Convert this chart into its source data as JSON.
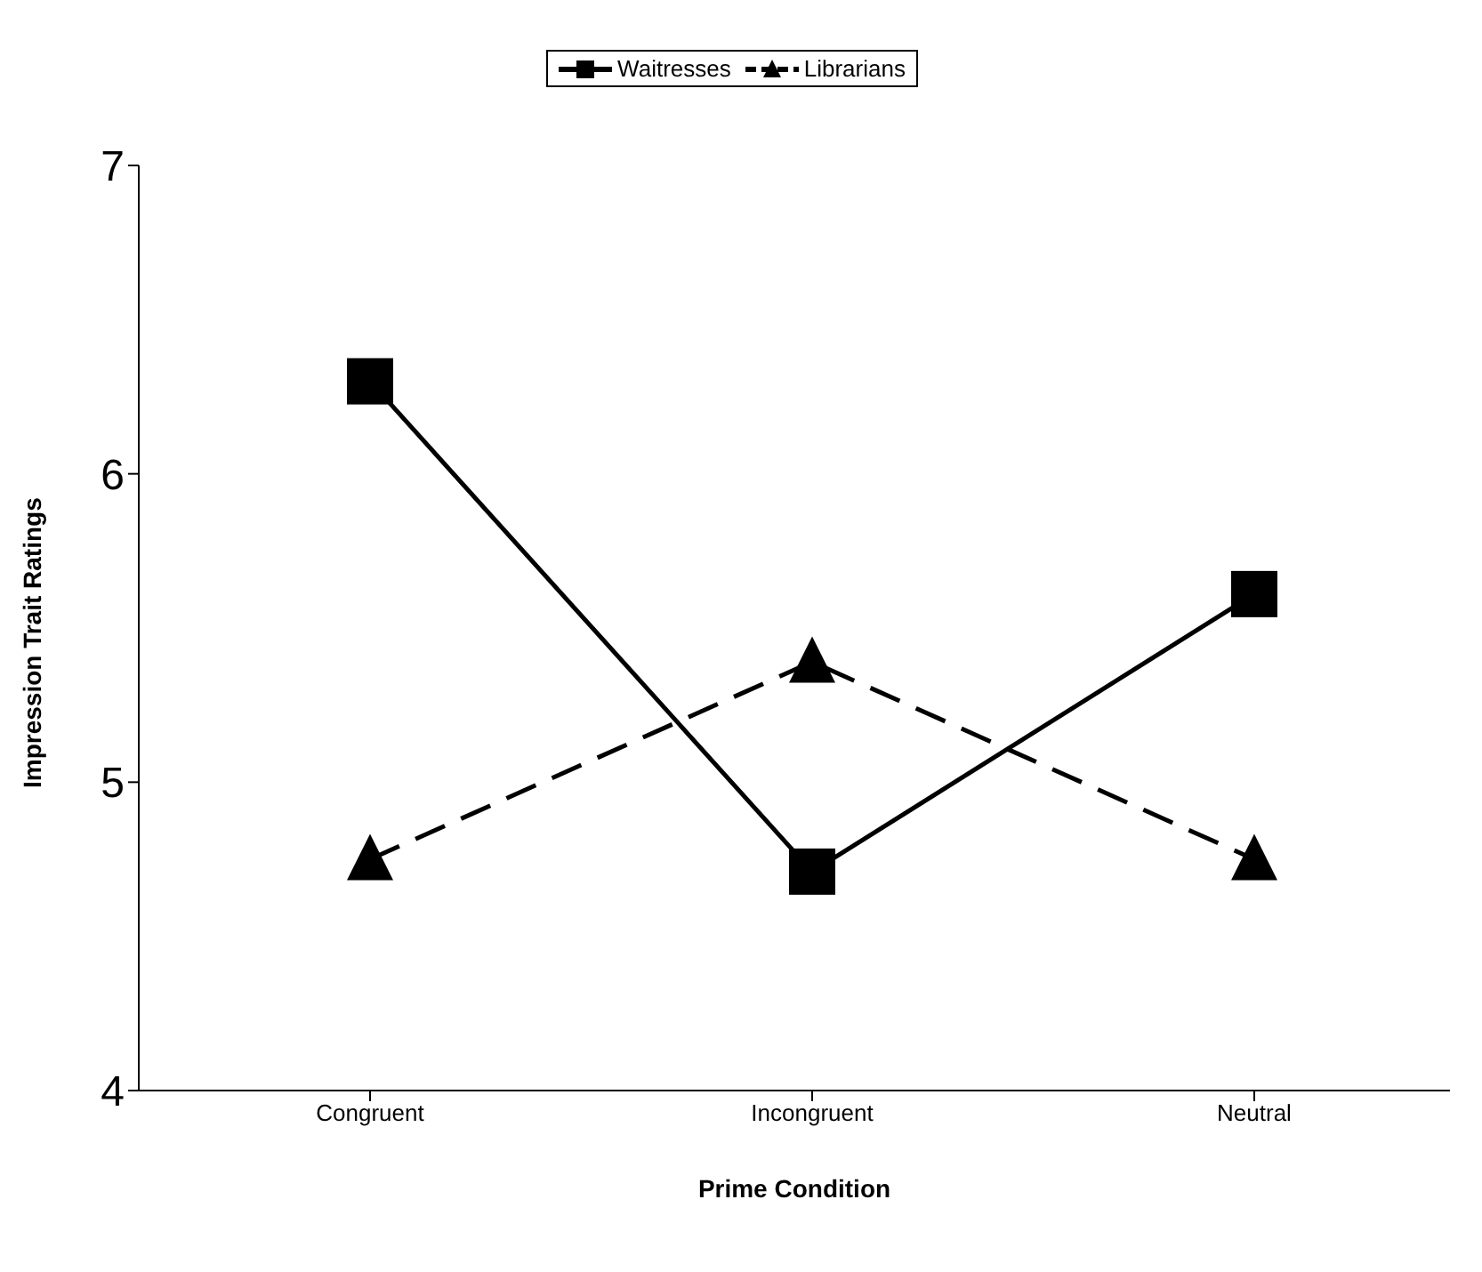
{
  "chart_data": {
    "type": "line",
    "xlabel": "Prime Condition",
    "ylabel": "Impression Trait Ratings",
    "categories": [
      "Congruent",
      "Incongruent",
      "Neutral"
    ],
    "series": [
      {
        "name": "Waitresses",
        "color": "#000000",
        "values": [
          6.3,
          4.71,
          5.61
        ],
        "marker": "square",
        "line_style": "solid"
      },
      {
        "name": "Librarians",
        "color": "#000000",
        "values": [
          4.75,
          5.39,
          4.75
        ],
        "marker": "triangle",
        "line_style": "dashed"
      }
    ],
    "ylim": [
      4,
      7
    ],
    "yticks": [
      4,
      5,
      6,
      7
    ],
    "grid": false,
    "legend": "top"
  }
}
